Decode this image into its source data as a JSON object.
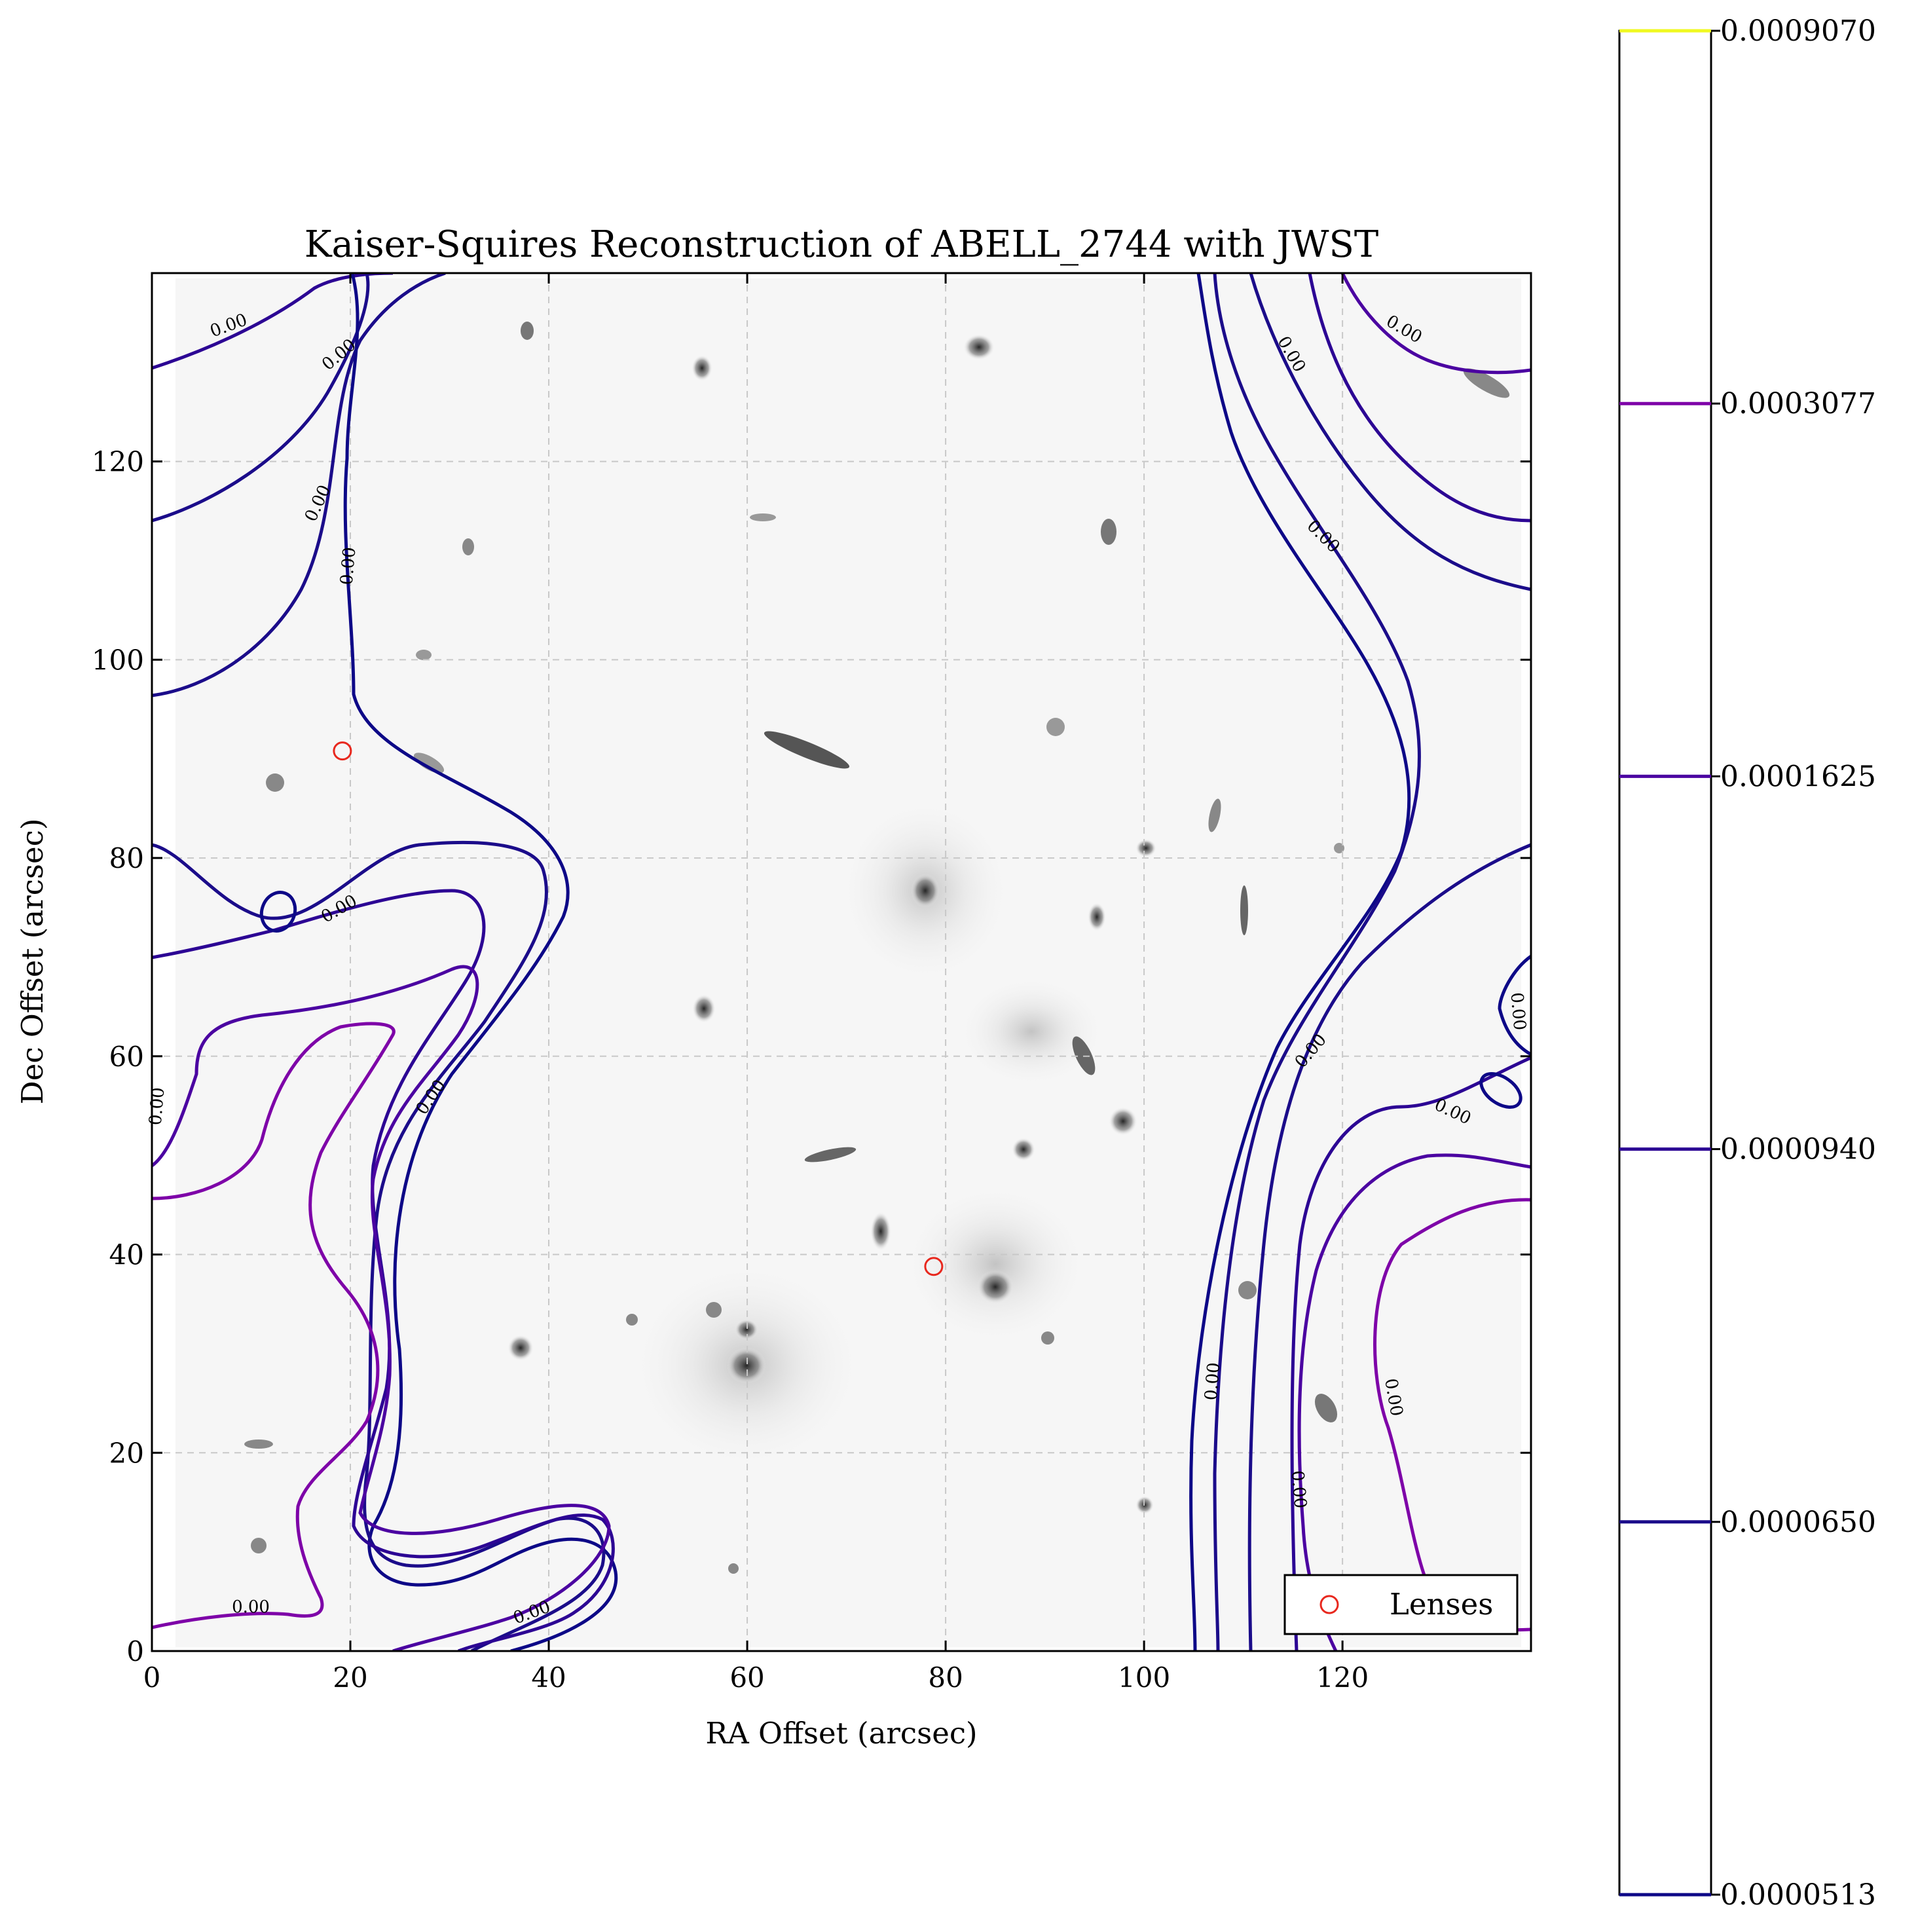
{
  "chart_data": {
    "type": "contour",
    "title": "Kaiser-Squires Reconstruction of ABELL_2744 with JWST",
    "xlabel": "RA Offset (arcsec)",
    "ylabel": "Dec Offset (arcsec)",
    "xlim": [
      0,
      139
    ],
    "ylim": [
      0,
      139
    ],
    "xticks": [
      0,
      20,
      40,
      60,
      80,
      100,
      120
    ],
    "yticks": [
      0,
      20,
      40,
      60,
      80,
      100,
      120
    ],
    "grid": true,
    "background": "grayscale galaxy field image",
    "contour_label_text": "0.00",
    "colorbar": {
      "ticks": [
        "0.0000513",
        "0.0000650",
        "0.0000940",
        "0.0001625",
        "0.0003077",
        "0.0009070"
      ],
      "level_colors": [
        "#0d0887",
        "#1b0c8a",
        "#2c0594",
        "#4b03a1",
        "#7e03a8",
        "#f0f921"
      ]
    },
    "lenses": {
      "name": "Lenses",
      "color": "#e8281e",
      "points": [
        {
          "x": 19.2,
          "y": 90.8
        },
        {
          "x": 78.8,
          "y": 38.8
        }
      ]
    },
    "legend": {
      "position": "lower right",
      "entries": [
        "Lenses"
      ]
    }
  }
}
